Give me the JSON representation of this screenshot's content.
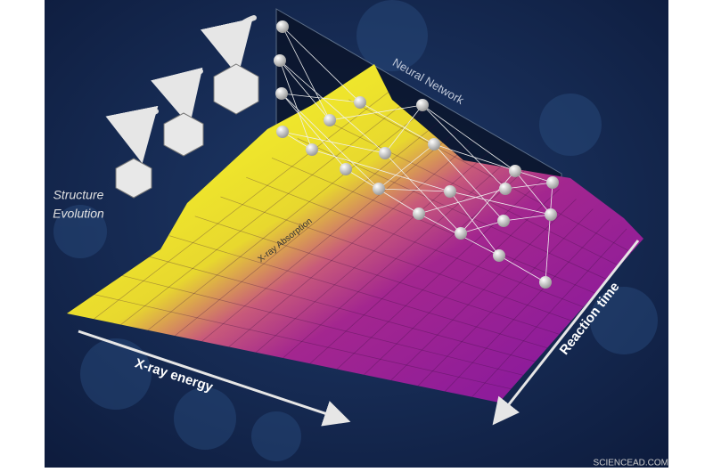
{
  "labels": {
    "neural_network": "Neural Network",
    "structure_evolution": [
      "Structure",
      "Evolution"
    ],
    "xray_absorption": "X-ray Absorption",
    "xray_energy": "X-ray energy",
    "reaction_time": "Reaction time",
    "watermark": "SCIENCEAD.COM"
  }
}
